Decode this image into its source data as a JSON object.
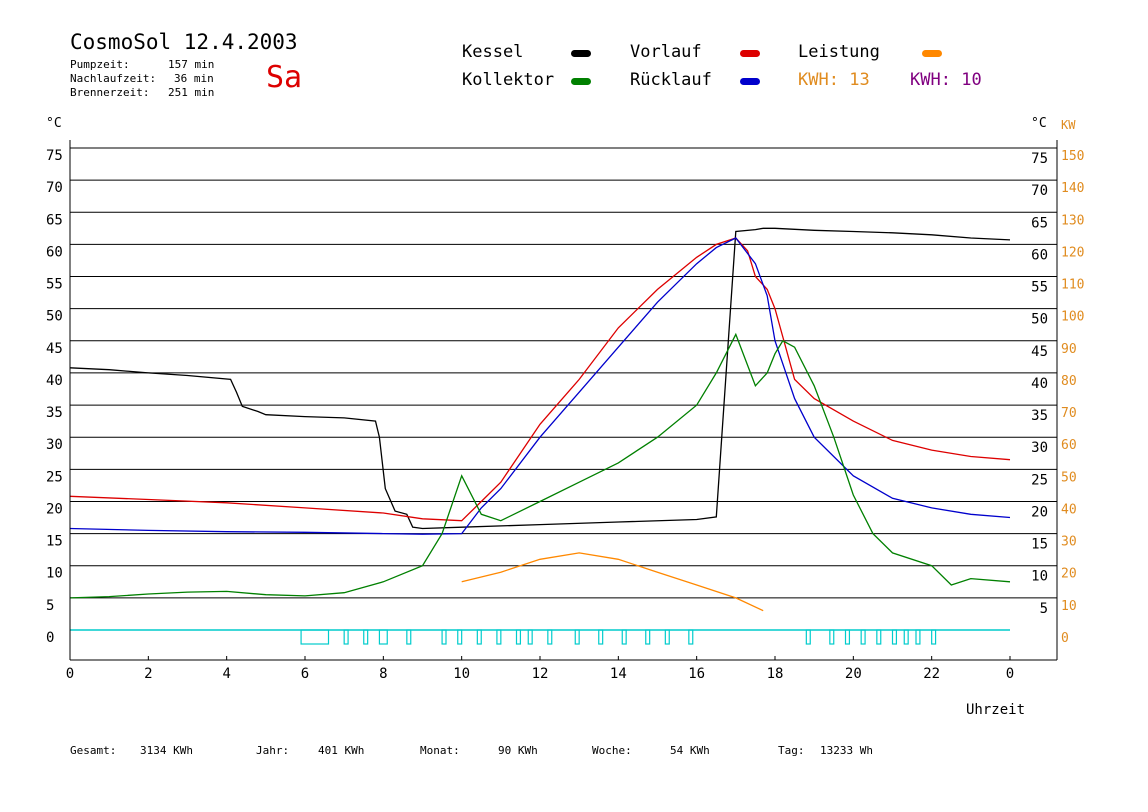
{
  "header": {
    "title": "CosmoSol 12.4.2003",
    "day": "Sa",
    "stats": [
      {
        "label": "Pumpzeit:",
        "value": "157 min"
      },
      {
        "label": "Nachlaufzeit:",
        "value": "36 min"
      },
      {
        "label": "Brennerzeit:",
        "value": "251 min"
      }
    ]
  },
  "legend": {
    "kessel": {
      "label": "Kessel",
      "color": "#000000"
    },
    "vorlauf": {
      "label": "Vorlauf",
      "color": "#dd0000"
    },
    "leistung": {
      "label": "Leistung",
      "color": "#ff8800"
    },
    "kollektor": {
      "label": "Kollektor",
      "color": "#008000"
    },
    "ruecklauf": {
      "label": "Rücklauf",
      "color": "#0000cc"
    },
    "kwh1": {
      "label": "KWH:",
      "value": "13",
      "color": "#e08c20"
    },
    "kwh2": {
      "label": "KWH:",
      "value": "10",
      "color": "#800080"
    }
  },
  "footer": [
    {
      "label": "Gesamt:",
      "value": "3134 KWh"
    },
    {
      "label": "Jahr:",
      "value": "401 KWh"
    },
    {
      "label": "Monat:",
      "value": "90 KWh"
    },
    {
      "label": "Woche:",
      "value": "54 KWh"
    },
    {
      "label": "Tag:",
      "value": "13233 Wh"
    }
  ],
  "chart_data": {
    "type": "line",
    "xlabel": "Uhrzeit",
    "ylabel_left": "°C",
    "ylabel_right": [
      "°C",
      "KW"
    ],
    "xlim": [
      0,
      24
    ],
    "ylim": [
      0,
      75
    ],
    "ylim_right_kw": [
      0,
      150
    ],
    "x_ticks": [
      "0",
      "2",
      "4",
      "6",
      "8",
      "10",
      "12",
      "14",
      "16",
      "18",
      "20",
      "22",
      "0"
    ],
    "y_ticks": [
      0,
      5,
      10,
      15,
      20,
      25,
      30,
      35,
      40,
      45,
      50,
      55,
      60,
      65,
      70,
      75
    ],
    "y_ticks_right_celsius": [
      5,
      10,
      15,
      20,
      25,
      30,
      35,
      40,
      45,
      50,
      55,
      60,
      65,
      70,
      75
    ],
    "y_ticks_right_kw": [
      0,
      10,
      20,
      30,
      40,
      50,
      60,
      70,
      80,
      90,
      100,
      110,
      120,
      130,
      140,
      150
    ],
    "grid": true,
    "series": [
      {
        "name": "Kessel",
        "color": "#000000",
        "x": [
          0,
          1,
          2,
          3,
          4.1,
          4.25,
          4.4,
          4.8,
          5,
          6,
          7,
          7.8,
          7.9,
          8.05,
          8.3,
          8.6,
          8.75,
          9,
          10,
          12,
          14,
          16,
          16.5,
          17,
          17.5,
          17.7,
          18,
          19,
          20,
          21,
          22,
          23,
          24
        ],
        "y": [
          40.8,
          40.5,
          40,
          39.6,
          39,
          37,
          34.8,
          34,
          33.5,
          33.2,
          33,
          32.5,
          30,
          22,
          18.5,
          18,
          16,
          15.8,
          16,
          16.4,
          16.8,
          17.2,
          17.6,
          62,
          62.3,
          62.5,
          62.5,
          62.2,
          62,
          61.8,
          61.5,
          61,
          60.7
        ]
      },
      {
        "name": "Vorlauf",
        "color": "#dd0000",
        "x": [
          0,
          2,
          4,
          6,
          8,
          9,
          10,
          10.5,
          11,
          12,
          13,
          14,
          15,
          16,
          16.5,
          17,
          17.3,
          17.5,
          17.8,
          18,
          18.5,
          19,
          20,
          21,
          22,
          23,
          24
        ],
        "y": [
          20.8,
          20.3,
          19.8,
          19,
          18.2,
          17.3,
          17,
          20,
          23,
          32,
          39,
          47,
          53,
          58,
          60,
          61,
          59,
          55,
          53,
          50,
          39,
          36,
          32.5,
          29.5,
          28,
          27,
          26.5
        ]
      },
      {
        "name": "Rücklauf",
        "color": "#0000cc",
        "x": [
          0,
          2,
          4,
          6,
          8,
          9,
          10,
          10.5,
          11,
          12,
          13,
          14,
          15,
          16,
          16.5,
          17,
          17.5,
          17.8,
          18,
          18.5,
          19,
          20,
          21,
          22,
          23,
          24
        ],
        "y": [
          15.8,
          15.5,
          15.3,
          15.2,
          15,
          14.9,
          15,
          19,
          22,
          30,
          37,
          44,
          51,
          57,
          59.5,
          61,
          57,
          52,
          45,
          36,
          30,
          24,
          20.5,
          19,
          18,
          17.5
        ]
      },
      {
        "name": "Kollektor",
        "color": "#008000",
        "x": [
          0,
          1,
          2,
          3,
          4,
          5,
          6,
          7,
          8,
          9,
          9.5,
          10,
          10.5,
          11,
          12,
          13,
          14,
          15,
          16,
          16.5,
          17,
          17.5,
          17.8,
          18,
          18.2,
          18.5,
          19,
          19.5,
          20,
          20.5,
          21,
          22,
          22.5,
          23,
          24
        ],
        "y": [
          5,
          5.2,
          5.6,
          5.9,
          6,
          5.5,
          5.3,
          5.8,
          7.5,
          10,
          15,
          24,
          18,
          17,
          20,
          23,
          26,
          30,
          35,
          40,
          46,
          38,
          40,
          43,
          45,
          44,
          38,
          30,
          21,
          15,
          12,
          10,
          7,
          8,
          7.5
        ]
      },
      {
        "name": "Leistung",
        "color": "#ff8800",
        "unit": "KW",
        "x": [
          10,
          11,
          12,
          13,
          14,
          15,
          16,
          17,
          17.7
        ],
        "y": [
          15,
          18,
          22,
          24,
          22,
          18,
          14,
          10,
          6
        ]
      }
    ],
    "burner_on": [
      [
        5.9,
        6.6
      ],
      [
        7.0,
        7.1
      ],
      [
        7.5,
        7.6
      ],
      [
        7.9,
        8.1
      ],
      [
        8.6,
        8.7
      ],
      [
        9.5,
        9.6
      ],
      [
        9.9,
        10.0
      ],
      [
        10.4,
        10.5
      ],
      [
        10.9,
        11.0
      ],
      [
        11.4,
        11.5
      ],
      [
        11.7,
        11.8
      ],
      [
        12.2,
        12.3
      ],
      [
        12.9,
        13.0
      ],
      [
        13.5,
        13.6
      ],
      [
        14.1,
        14.2
      ],
      [
        14.7,
        14.8
      ],
      [
        15.2,
        15.3
      ],
      [
        15.8,
        15.9
      ],
      [
        18.8,
        18.9
      ],
      [
        19.4,
        19.5
      ],
      [
        19.8,
        19.9
      ],
      [
        20.2,
        20.3
      ],
      [
        20.6,
        20.7
      ],
      [
        21,
        21.1
      ],
      [
        21.3,
        21.4
      ],
      [
        21.6,
        21.7
      ],
      [
        22.0,
        22.1
      ]
    ]
  }
}
